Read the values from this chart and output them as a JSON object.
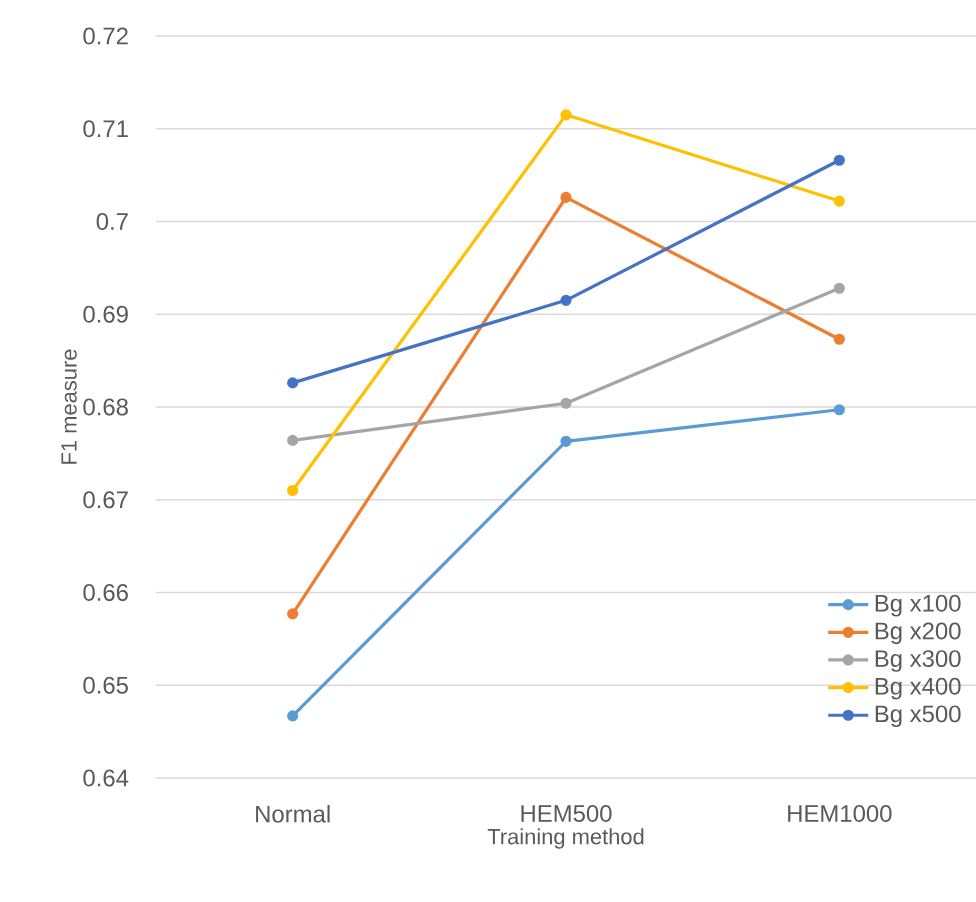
{
  "chart_data": {
    "type": "line",
    "xlabel": "Training method",
    "ylabel": "F1 measure",
    "categories": [
      "Normal",
      "HEM500",
      "HEM1000"
    ],
    "ylim": [
      0.64,
      0.72
    ],
    "yticks": [
      0.64,
      0.65,
      0.66,
      0.67,
      0.68,
      0.69,
      0.7,
      0.71,
      0.72
    ],
    "grid": "y",
    "legend": "bottom right",
    "marker": "circle",
    "line_style": "solid",
    "series": [
      {
        "name": "Bg x100",
        "color": "#5b9bd5",
        "values": [
          0.6467,
          0.6763,
          0.6797
        ]
      },
      {
        "name": "Bg x200",
        "color": "#ed7d31",
        "values": [
          0.6577,
          0.7026,
          0.6873
        ]
      },
      {
        "name": "Bg x300",
        "color": "#a5a5a5",
        "values": [
          0.6764,
          0.6804,
          0.6928
        ]
      },
      {
        "name": "Bg x400",
        "color": "#ffc000",
        "values": [
          0.671,
          0.7115,
          0.7022
        ]
      },
      {
        "name": "Bg x500",
        "color": "#4472c4",
        "values": [
          0.6826,
          0.6915,
          0.7066
        ]
      }
    ]
  }
}
